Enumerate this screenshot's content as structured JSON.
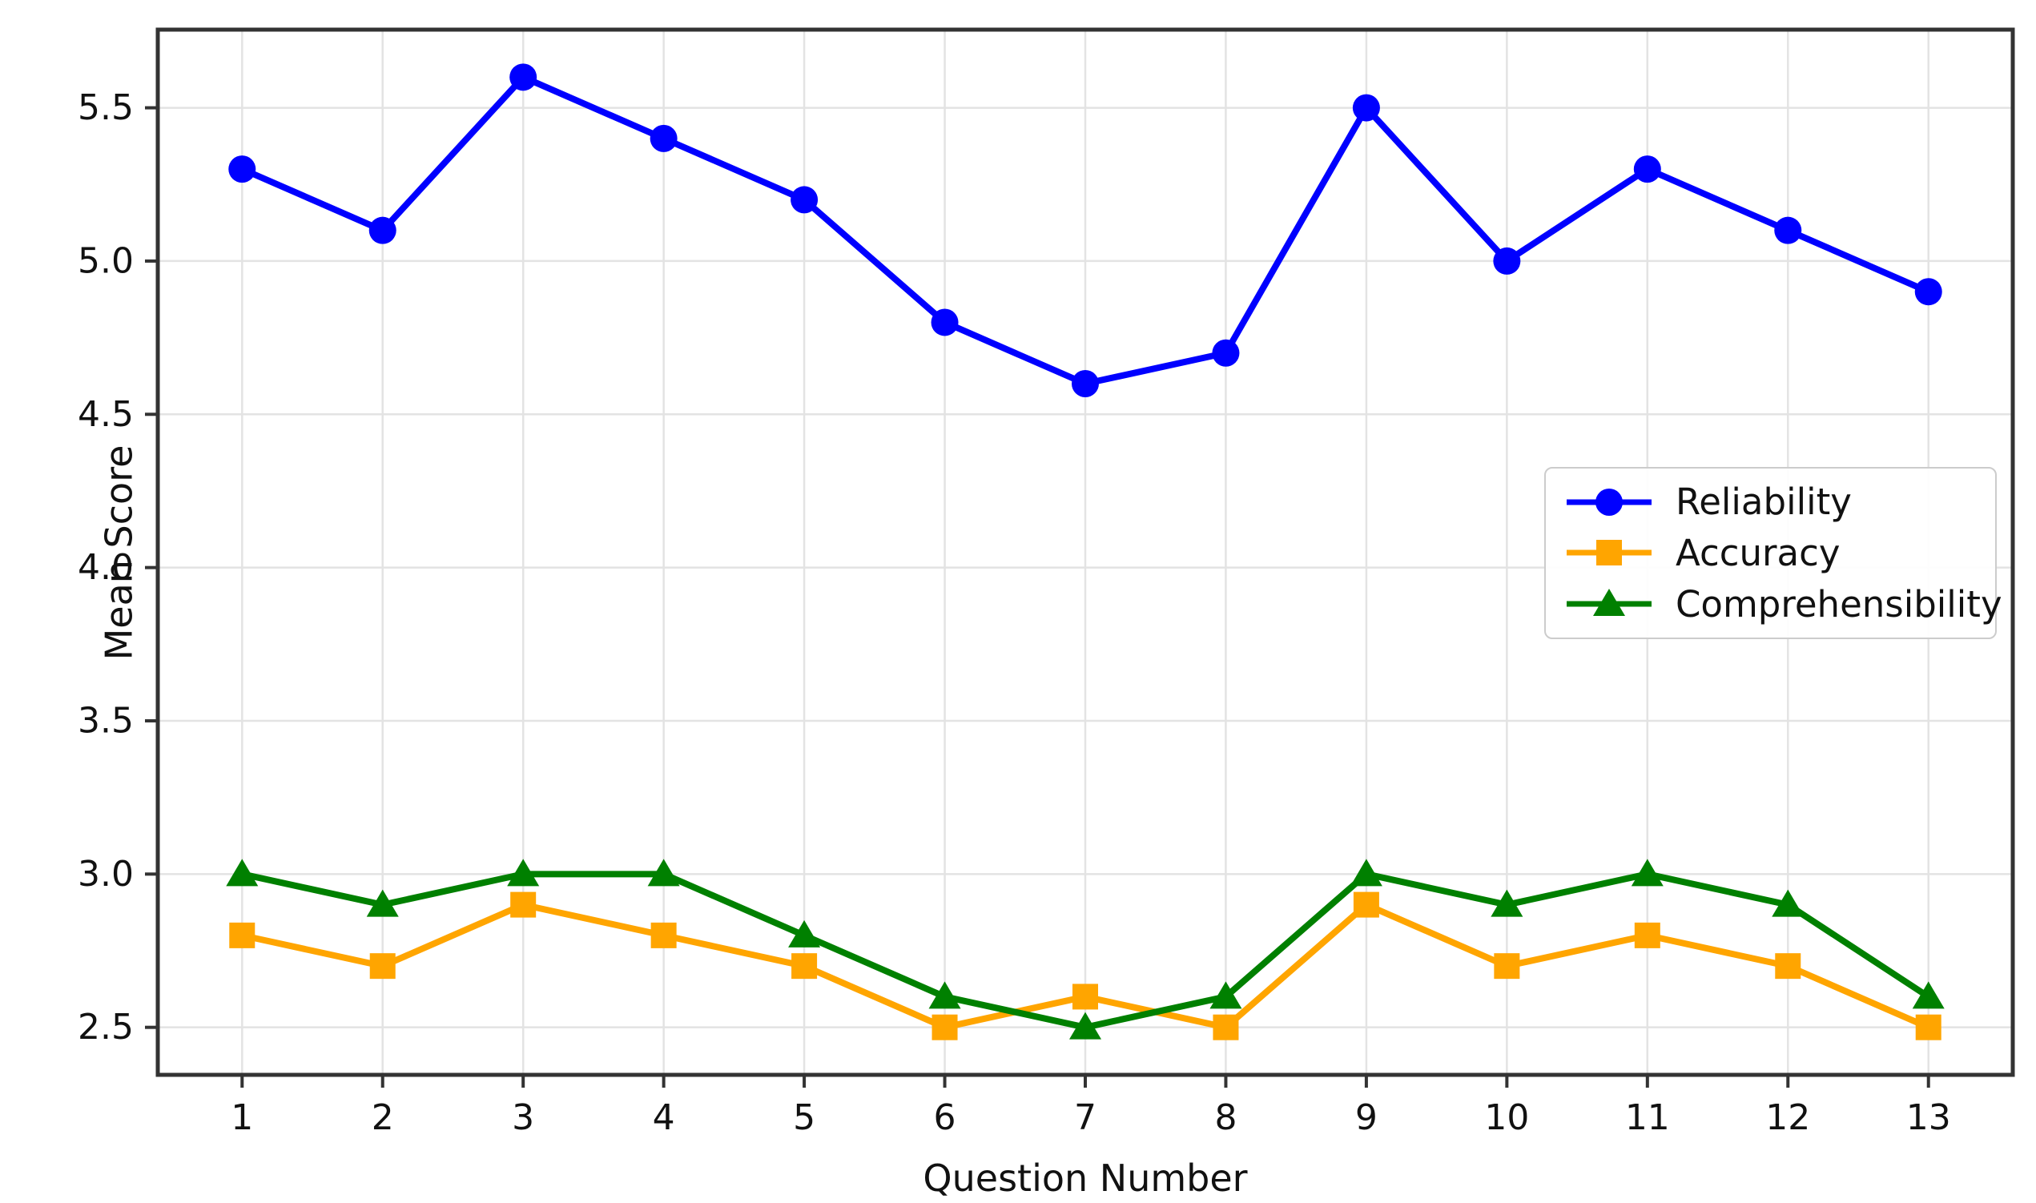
{
  "chart_data": {
    "type": "line",
    "title": "",
    "xlabel": "Question Number",
    "ylabel": "Mean Score",
    "x": [
      1,
      2,
      3,
      4,
      5,
      6,
      7,
      8,
      9,
      10,
      11,
      12,
      13
    ],
    "x_ticks": [
      1,
      2,
      3,
      4,
      5,
      6,
      7,
      8,
      9,
      10,
      11,
      12,
      13
    ],
    "y_ticks": [
      2.5,
      3.0,
      3.5,
      4.0,
      4.5,
      5.0,
      5.5
    ],
    "xlim": [
      0.4,
      13.6
    ],
    "ylim": [
      2.345,
      5.755
    ],
    "grid": true,
    "legend_position": "center-right",
    "series": [
      {
        "name": "Reliability",
        "marker": "circle",
        "color": "#0000FF",
        "values": [
          5.3,
          5.1,
          5.6,
          5.4,
          5.2,
          4.8,
          4.6,
          4.7,
          5.5,
          5.0,
          5.3,
          5.1,
          4.9
        ]
      },
      {
        "name": "Accuracy",
        "marker": "square",
        "color": "#FFA500",
        "values": [
          2.8,
          2.7,
          2.9,
          2.8,
          2.7,
          2.5,
          2.6,
          2.5,
          2.9,
          2.7,
          2.8,
          2.7,
          2.5
        ]
      },
      {
        "name": "Comprehensibility",
        "marker": "triangle",
        "color": "#008000",
        "values": [
          3.0,
          2.9,
          3.0,
          3.0,
          2.8,
          2.6,
          2.5,
          2.6,
          3.0,
          2.9,
          3.0,
          2.9,
          2.6
        ]
      }
    ],
    "colors": {
      "grid": "#e3e3e3",
      "spine": "#333333",
      "tick": "#333333",
      "text": "#111111",
      "background": "#ffffff"
    }
  }
}
